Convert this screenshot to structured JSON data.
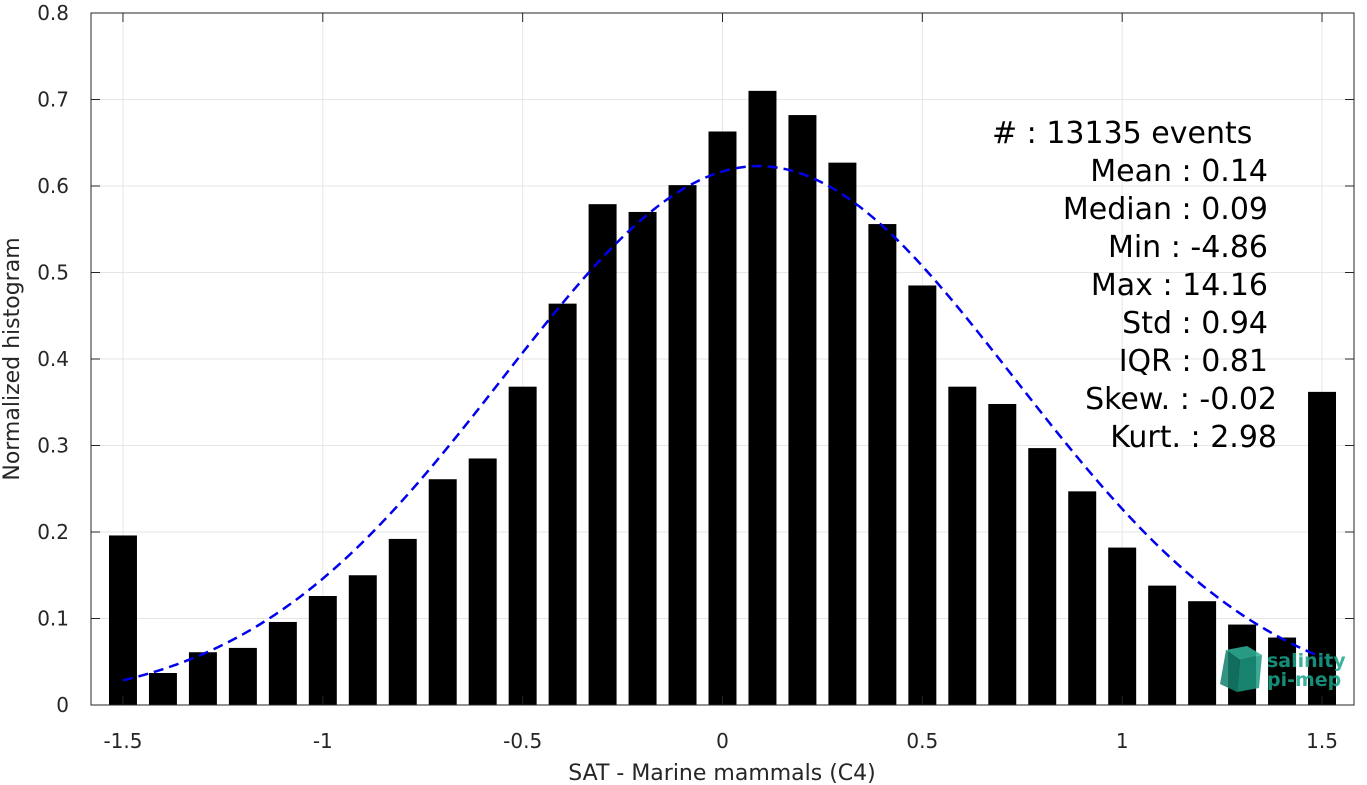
{
  "chart_data": {
    "type": "bar",
    "xlabel": "SAT - Marine mammals (C4)",
    "ylabel": "Normalized histogram",
    "xlim": [
      -1.58,
      1.58
    ],
    "ylim": [
      0,
      0.8
    ],
    "xticks": [
      -1.5,
      -1,
      -0.5,
      0,
      0.5,
      1,
      1.5
    ],
    "xtick_labels": [
      "-1.5",
      "-1",
      "-0.5",
      "0",
      "0.5",
      "1",
      "1.5"
    ],
    "yticks": [
      0,
      0.1,
      0.2,
      0.3,
      0.4,
      0.5,
      0.6,
      0.7,
      0.8
    ],
    "ytick_labels": [
      "0",
      "0.1",
      "0.2",
      "0.3",
      "0.4",
      "0.5",
      "0.6",
      "0.7",
      "0.8"
    ],
    "grid": true,
    "bar_color": "#000000",
    "bar_width": 0.07,
    "x": [
      -1.5,
      -1.4,
      -1.3,
      -1.2,
      -1.1,
      -1.0,
      -0.9,
      -0.8,
      -0.7,
      -0.6,
      -0.5,
      -0.4,
      -0.3,
      -0.2,
      -0.1,
      0.0,
      0.1,
      0.2,
      0.3,
      0.4,
      0.5,
      0.6,
      0.7,
      0.8,
      0.9,
      1.0,
      1.1,
      1.2,
      1.3,
      1.4,
      1.5
    ],
    "values": [
      0.196,
      0.037,
      0.061,
      0.066,
      0.096,
      0.126,
      0.15,
      0.192,
      0.261,
      0.285,
      0.368,
      0.464,
      0.579,
      0.57,
      0.601,
      0.663,
      0.71,
      0.682,
      0.627,
      0.556,
      0.485,
      0.368,
      0.348,
      0.297,
      0.247,
      0.182,
      0.138,
      0.12,
      0.093,
      0.078,
      0.362
    ],
    "fit_curve": {
      "type": "normal",
      "mean": 0.09,
      "peak": 0.623,
      "sigma": 0.64,
      "x_range": [
        -1.5,
        1.5
      ],
      "color": "#0000ee",
      "style": "dashed"
    },
    "annotations": [
      "#  : 13135 events",
      "Mean : 0.14",
      "Median : 0.09",
      "Min : -4.86",
      "Max : 14.16",
      "Std : 0.94",
      "IQR : 0.81",
      "Skew. : -0.02",
      "Kurt. : 2.98"
    ]
  },
  "logo": {
    "line1": "salinity",
    "line2": "pi-mep",
    "color": "#1aa58c"
  }
}
